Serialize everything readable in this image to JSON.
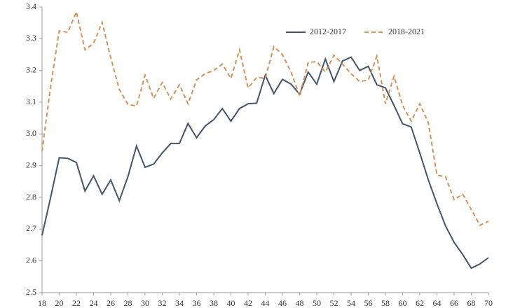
{
  "chart_data": {
    "type": "line",
    "x": [
      18,
      19,
      20,
      21,
      22,
      23,
      24,
      25,
      26,
      27,
      28,
      29,
      30,
      31,
      32,
      33,
      34,
      35,
      36,
      37,
      38,
      39,
      40,
      41,
      42,
      43,
      44,
      45,
      46,
      47,
      48,
      49,
      50,
      51,
      52,
      53,
      54,
      55,
      56,
      57,
      58,
      59,
      60,
      61,
      62,
      63,
      64,
      65,
      66,
      67,
      68,
      69,
      70
    ],
    "series": [
      {
        "name": "2012-2017",
        "color": "#44546a",
        "dash": false,
        "values": [
          2.68,
          2.8,
          2.925,
          2.923,
          2.91,
          2.82,
          2.868,
          2.81,
          2.855,
          2.79,
          2.865,
          2.962,
          2.895,
          2.905,
          2.94,
          2.97,
          2.97,
          3.033,
          2.988,
          3.025,
          3.045,
          3.08,
          3.04,
          3.08,
          3.095,
          3.097,
          3.185,
          3.127,
          3.172,
          3.157,
          3.125,
          3.195,
          3.157,
          3.236,
          3.165,
          3.23,
          3.242,
          3.2,
          3.213,
          3.155,
          3.145,
          3.09,
          3.032,
          3.022,
          2.94,
          2.855,
          2.78,
          2.71,
          2.658,
          2.62,
          2.577,
          2.59,
          2.61
        ]
      },
      {
        "name": "2018-2021",
        "color": "#d4915a",
        "dash": true,
        "values": [
          2.945,
          3.15,
          3.325,
          3.32,
          3.385,
          3.265,
          3.285,
          3.352,
          3.24,
          3.14,
          3.093,
          3.088,
          3.185,
          3.112,
          3.162,
          3.11,
          3.155,
          3.095,
          3.17,
          3.19,
          3.2,
          3.22,
          3.175,
          3.265,
          3.145,
          3.178,
          3.175,
          3.275,
          3.25,
          3.195,
          3.12,
          3.225,
          3.228,
          3.195,
          3.248,
          3.22,
          3.19,
          3.165,
          3.17,
          3.245,
          3.095,
          3.182,
          3.09,
          3.04,
          3.095,
          3.035,
          2.87,
          2.865,
          2.793,
          2.81,
          2.762,
          2.712,
          2.725
        ]
      }
    ],
    "xlim": [
      18,
      70
    ],
    "xticks": [
      18,
      20,
      22,
      24,
      26,
      28,
      30,
      32,
      34,
      36,
      38,
      40,
      42,
      44,
      46,
      48,
      50,
      52,
      54,
      56,
      58,
      60,
      62,
      64,
      66,
      68,
      70
    ],
    "ylim": [
      2.5,
      3.4
    ],
    "yticks": [
      2.5,
      2.6,
      2.7,
      2.8,
      2.9,
      {
        "value": 3,
        "label": "3.0"
      },
      3.1,
      3.2,
      3.3,
      3.4
    ],
    "grid": false,
    "legend": "upper right"
  }
}
